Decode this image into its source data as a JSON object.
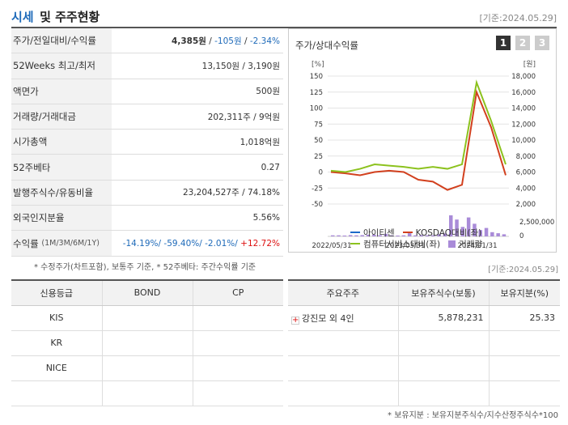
{
  "header": {
    "title_a": "시세",
    "title_b": "및 주주현황",
    "date": "[기준:2024.05.29]"
  },
  "quote": {
    "price_label": "주가/전일대비/수익률",
    "price": "4,385원",
    "change": "-105원",
    "rate": "-2.34%",
    "w52_label": "52Weeks 최고/최저",
    "w52": "13,150원 / 3,190원",
    "par_label": "액면가",
    "par": "500원",
    "vol_label": "거래량/거래대금",
    "vol": "202,311주 / 9억원",
    "mcap_label": "시가총액",
    "mcap": "1,018억원",
    "beta_label": "52주베타",
    "beta": "0.27",
    "shares_label": "발행주식수/유동비율",
    "shares": "23,204,527주 / 74.18%",
    "foreign_label": "외국인지분율",
    "foreign": "5.56%",
    "ret_label": "수익률",
    "ret_periods": "(1M/3M/6M/1Y)",
    "ret_1m": "-14.19%/",
    "ret_3m": "-59.40%/",
    "ret_6m": "-2.01%/",
    "ret_1y": "+12.72%"
  },
  "footnote_left": "* 수정주가(차트포함), 보통주 기준, * 52주베타: 주간수익률 기준",
  "chart": {
    "heading": "주가/상대수익률",
    "tabs": [
      "1",
      "2",
      "3"
    ],
    "left_unit": "[%]",
    "right_unit": "[원]",
    "left_ticks": [
      "150",
      "125",
      "100",
      "75",
      "50",
      "25",
      "0",
      "-25",
      "-50"
    ],
    "right_ticks": [
      "18,000",
      "16,000",
      "14,000",
      "12,000",
      "10,000",
      "8,000",
      "6,000",
      "4,000",
      "2,000"
    ],
    "vol_tick": "2,500,000",
    "vol_zero": "0",
    "x_ticks": [
      "2022/05/31",
      "2023/03/31",
      "2024/01/31"
    ],
    "legend": [
      "아이티센",
      "KOSDAQ대비(좌)",
      "컴퓨터서비스대비(좌)",
      "거래량"
    ],
    "colors": {
      "stock": "#1e6ac9",
      "kosdaq": "#d2401e",
      "sector": "#8cc21e",
      "volume": "#a98bd8"
    }
  },
  "chart_data": {
    "type": "line",
    "x": [
      "2022/05",
      "2022/07",
      "2022/09",
      "2022/11",
      "2023/01",
      "2023/03",
      "2023/05",
      "2023/07",
      "2023/09",
      "2023/11",
      "2024/01",
      "2024/03",
      "2024/05"
    ],
    "series": [
      {
        "name": "KOSDAQ대비(좌)",
        "values": [
          0,
          -2,
          -5,
          0,
          2,
          0,
          -12,
          -15,
          -28,
          -20,
          125,
          70,
          -5
        ]
      },
      {
        "name": "컴퓨터서비스대비(좌)",
        "values": [
          2,
          0,
          5,
          12,
          10,
          8,
          5,
          8,
          5,
          12,
          140,
          80,
          12
        ]
      }
    ],
    "ylim": [
      -50,
      150
    ]
  },
  "credit": {
    "headers": [
      "신용등급",
      "BOND",
      "CP"
    ],
    "rows": [
      [
        "KIS",
        "",
        ""
      ],
      [
        "KR",
        "",
        ""
      ],
      [
        "NICE",
        "",
        ""
      ],
      [
        "",
        "",
        ""
      ]
    ]
  },
  "holders": {
    "headers": [
      "주요주주",
      "보유주식수(보통)",
      "보유지분(%)"
    ],
    "rows": [
      [
        "강진모 외 4인",
        "5,878,231",
        "25.33"
      ],
      [
        "",
        "",
        ""
      ],
      [
        "",
        "",
        ""
      ],
      [
        "",
        "",
        ""
      ]
    ]
  },
  "footnote_right": "* 보유지분 : 보유지분주식수/지수산정주식수*100"
}
